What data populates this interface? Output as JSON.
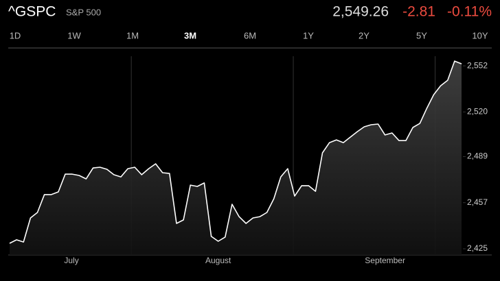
{
  "header": {
    "symbol": "^GSPC",
    "name": "S&P 500",
    "price": "2,549.26",
    "change": "-2.81",
    "change_percent": "-0.11%"
  },
  "tabs": [
    {
      "label": "1D",
      "selected": false
    },
    {
      "label": "1W",
      "selected": false
    },
    {
      "label": "1M",
      "selected": false
    },
    {
      "label": "3M",
      "selected": true
    },
    {
      "label": "6M",
      "selected": false
    },
    {
      "label": "1Y",
      "selected": false
    },
    {
      "label": "2Y",
      "selected": false
    },
    {
      "label": "5Y",
      "selected": false
    },
    {
      "label": "10Y",
      "selected": false
    }
  ],
  "chart_data": {
    "type": "line",
    "color": "#ffffff",
    "values": [
      2428.8,
      2431.2,
      2429.7,
      2446.4,
      2450.2,
      2462.6,
      2462.6,
      2464.5,
      2476.8,
      2476.8,
      2475.9,
      2473.5,
      2481.1,
      2481.6,
      2480.2,
      2476.4,
      2474.9,
      2480.6,
      2481.6,
      2476.4,
      2480.6,
      2484.0,
      2477.8,
      2477.3,
      2442.6,
      2445.0,
      2469.2,
      2468.3,
      2470.7,
      2433.6,
      2430.2,
      2433.1,
      2455.9,
      2447.3,
      2442.6,
      2446.4,
      2447.3,
      2450.2,
      2459.7,
      2474.9,
      2480.6,
      2461.6,
      2468.8,
      2468.8,
      2464.9,
      2491.6,
      2498.7,
      2500.6,
      2498.7,
      2502.5,
      2506.3,
      2509.7,
      2511.1,
      2511.6,
      2504.0,
      2505.4,
      2500.1,
      2500.1,
      2509.2,
      2512.0,
      2522.5,
      2532.0,
      2538.2,
      2542.0,
      2555.3,
      2553.4
    ],
    "ylim": [
      2420.7,
      2558.7
    ],
    "yticks": [
      {
        "value": 2425,
        "label": "2,425"
      },
      {
        "value": 2457,
        "label": "2,457"
      },
      {
        "value": 2489,
        "label": "2,489"
      },
      {
        "value": 2520,
        "label": "2,520"
      },
      {
        "value": 2552,
        "label": "2,552"
      }
    ],
    "month_labels": [
      "July",
      "August",
      "September"
    ]
  }
}
